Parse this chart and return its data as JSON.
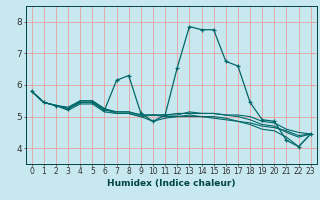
{
  "xlabel": "Humidex (Indice chaleur)",
  "xlim": [
    -0.5,
    23.5
  ],
  "ylim": [
    3.5,
    8.5
  ],
  "yticks": [
    4,
    5,
    6,
    7,
    8
  ],
  "xticks": [
    0,
    1,
    2,
    3,
    4,
    5,
    6,
    7,
    8,
    9,
    10,
    11,
    12,
    13,
    14,
    15,
    16,
    17,
    18,
    19,
    20,
    21,
    22,
    23
  ],
  "xtick_labels": [
    "0",
    "1",
    "2",
    "3",
    "4",
    "5",
    "6",
    "7",
    "8",
    "9",
    "10",
    "11",
    "12",
    "13",
    "14",
    "15",
    "16",
    "17",
    "18",
    "19",
    "20",
    "21",
    "22",
    "23"
  ],
  "bg_color": "#c8e8f0",
  "grid_color": "#e8a0a0",
  "line_color": "#006868",
  "lines": [
    {
      "x": [
        0,
        1,
        2,
        3,
        4,
        5,
        6,
        7,
        8,
        9,
        10,
        11,
        12,
        13,
        14,
        15,
        16,
        17,
        18,
        19,
        20,
        21,
        22,
        23
      ],
      "y": [
        5.8,
        5.45,
        5.35,
        5.25,
        5.45,
        5.45,
        5.2,
        6.15,
        6.3,
        5.1,
        4.85,
        5.05,
        6.55,
        7.85,
        7.75,
        7.75,
        6.75,
        6.6,
        5.45,
        4.9,
        4.85,
        4.25,
        4.05,
        4.45
      ],
      "marker": true
    },
    {
      "x": [
        0,
        1,
        2,
        3,
        4,
        5,
        6,
        7,
        8,
        9,
        10,
        11,
        12,
        13,
        14,
        15,
        16,
        17,
        18,
        19,
        20,
        21,
        22,
        23
      ],
      "y": [
        5.8,
        5.45,
        5.35,
        5.2,
        5.4,
        5.4,
        5.15,
        5.1,
        5.1,
        5.0,
        5.05,
        5.0,
        5.0,
        5.0,
        5.0,
        4.95,
        4.9,
        4.85,
        4.8,
        4.7,
        4.65,
        4.55,
        4.4,
        4.45
      ],
      "marker": false
    },
    {
      "x": [
        0,
        1,
        2,
        3,
        4,
        5,
        6,
        7,
        8,
        9,
        10,
        11,
        12,
        13,
        14,
        15,
        16,
        17,
        18,
        19,
        20,
        21,
        22,
        23
      ],
      "y": [
        5.8,
        5.45,
        5.35,
        5.25,
        5.45,
        5.45,
        5.2,
        5.15,
        5.15,
        5.05,
        5.05,
        5.05,
        5.1,
        5.1,
        5.1,
        5.1,
        5.05,
        5.05,
        5.0,
        4.85,
        4.8,
        4.6,
        4.5,
        4.45
      ],
      "marker": false
    },
    {
      "x": [
        0,
        1,
        2,
        3,
        4,
        5,
        6,
        7,
        8,
        9,
        10,
        11,
        12,
        13,
        14,
        15,
        16,
        17,
        18,
        19,
        20,
        21,
        22,
        23
      ],
      "y": [
        5.8,
        5.45,
        5.35,
        5.3,
        5.5,
        5.5,
        5.25,
        5.15,
        5.15,
        5.05,
        5.05,
        5.05,
        5.05,
        5.15,
        5.1,
        5.1,
        5.05,
        5.0,
        4.9,
        4.75,
        4.7,
        4.5,
        4.35,
        4.45
      ],
      "marker": false
    },
    {
      "x": [
        0,
        1,
        2,
        3,
        4,
        5,
        6,
        7,
        8,
        9,
        10,
        11,
        12,
        13,
        14,
        15,
        16,
        17,
        18,
        19,
        20,
        21,
        22,
        23
      ],
      "y": [
        5.8,
        5.45,
        5.35,
        5.25,
        5.5,
        5.5,
        5.25,
        5.1,
        5.1,
        5.0,
        4.85,
        4.95,
        5.0,
        5.05,
        5.0,
        5.0,
        4.95,
        4.85,
        4.75,
        4.6,
        4.55,
        4.35,
        4.05,
        4.45
      ],
      "marker": false
    }
  ]
}
